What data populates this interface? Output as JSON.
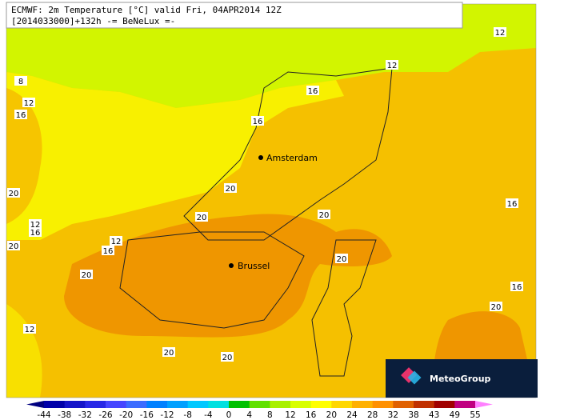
{
  "header": {
    "line1": "ECMWF: 2m Temperature [°C] valid Fri, 04APR2014 12Z",
    "line2": "[2014033000]+132h -= BeNeLux =-"
  },
  "cities": [
    "Amsterdam",
    "Brussel"
  ],
  "contour_labels": [
    12,
    12,
    8,
    12,
    16,
    16,
    16,
    20,
    20,
    16,
    20,
    12,
    16,
    20,
    12,
    16,
    20,
    20,
    20,
    16,
    20,
    12,
    20,
    20
  ],
  "colorbar": {
    "labels": [
      -44,
      -38,
      -32,
      -26,
      -20,
      -16,
      -12,
      -8,
      -4,
      0,
      4,
      8,
      12,
      16,
      20,
      24,
      28,
      32,
      38,
      43,
      49,
      55
    ],
    "colors": [
      "#000080",
      "#0000a8",
      "#1414c8",
      "#2828e6",
      "#4646ff",
      "#3c6cff",
      "#0080ff",
      "#00a0ff",
      "#00c8ff",
      "#00e0e0",
      "#00c000",
      "#60e000",
      "#a8f000",
      "#d8ff00",
      "#ffff00",
      "#ffd700",
      "#ffb000",
      "#ff9000",
      "#e06000",
      "#c03000",
      "#a00000",
      "#c00080",
      "#ff80ff"
    ]
  },
  "logo": "MeteoGroup"
}
